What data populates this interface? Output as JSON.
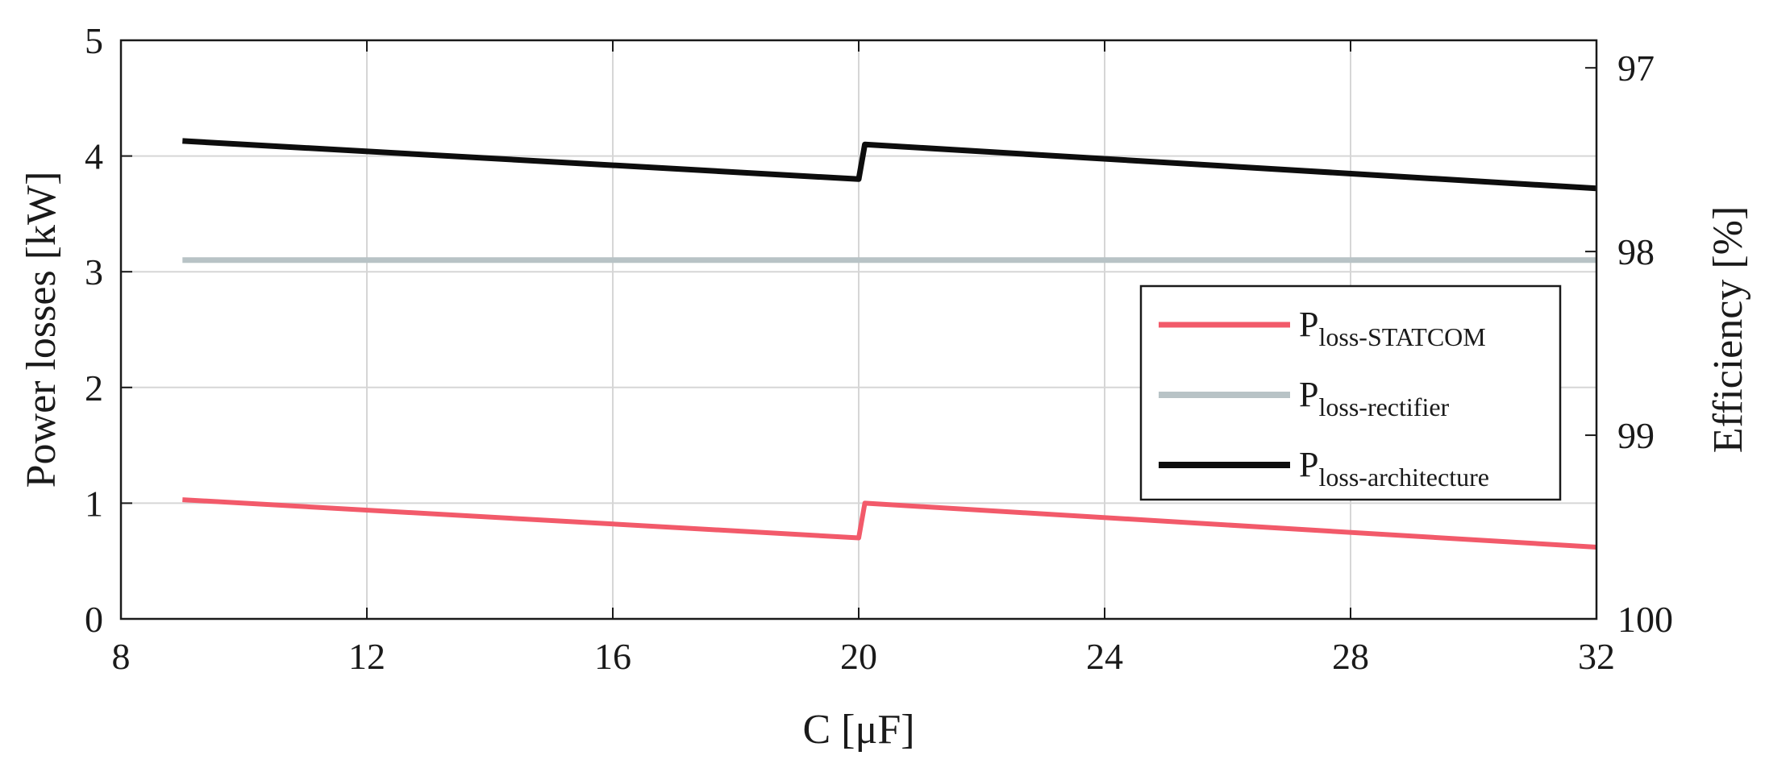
{
  "chart_data": {
    "type": "line",
    "xlabel": "C [μF]",
    "ylabel": "Power losses [kW]",
    "y2label": "Efficiency [%]",
    "xlim": [
      8,
      32
    ],
    "ylim": [
      0,
      5
    ],
    "y2lim_top_to_bottom": [
      96.85,
      100
    ],
    "y2_reversed": true,
    "xticks": [
      8,
      12,
      16,
      20,
      24,
      28,
      32
    ],
    "xtick_labels": [
      "8",
      "12",
      "16",
      "20",
      "24",
      "28",
      "32"
    ],
    "yticks": [
      0,
      1,
      2,
      3,
      4,
      5
    ],
    "ytick_labels": [
      "0",
      "1",
      "2",
      "3",
      "4",
      "5"
    ],
    "y2ticks": [
      97,
      98,
      99,
      100
    ],
    "y2tick_labels": [
      "97",
      "98",
      "99",
      "100"
    ],
    "grid": true,
    "legend_position": "right",
    "series": [
      {
        "name_main": "P",
        "name_sub": "loss-STATCOM",
        "color": "#f25a6a",
        "width": 6,
        "x": [
          9,
          20,
          20.1,
          32
        ],
        "values": [
          1.03,
          0.7,
          1.0,
          0.62
        ]
      },
      {
        "name_main": "P",
        "name_sub": "loss-rectifier",
        "color": "#b8c3c6",
        "width": 7,
        "x": [
          9,
          32
        ],
        "values": [
          3.1,
          3.1
        ]
      },
      {
        "name_main": "P",
        "name_sub": "loss-architecture",
        "color": "#0d0d0d",
        "width": 7,
        "x": [
          9,
          20,
          20.1,
          32
        ],
        "values": [
          4.13,
          3.8,
          4.1,
          3.72
        ]
      }
    ]
  }
}
